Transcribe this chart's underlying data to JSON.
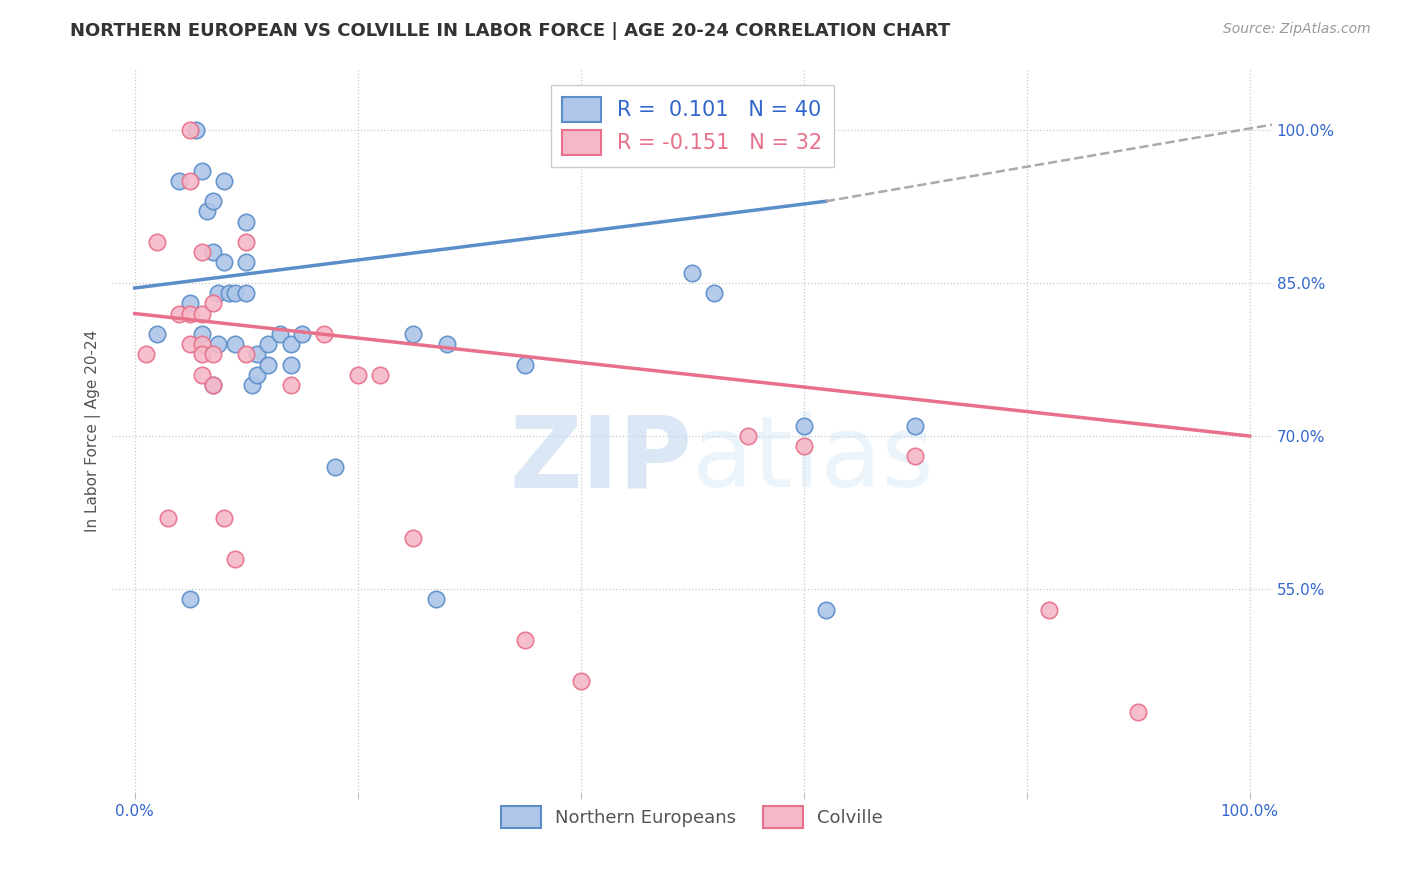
{
  "title": "NORTHERN EUROPEAN VS COLVILLE IN LABOR FORCE | AGE 20-24 CORRELATION CHART",
  "source": "Source: ZipAtlas.com",
  "ylabel": "In Labor Force | Age 20-24",
  "xlim": [
    -0.02,
    1.02
  ],
  "ylim": [
    0.35,
    1.06
  ],
  "ytick_labels_right": [
    "100.0%",
    "85.0%",
    "70.0%",
    "55.0%"
  ],
  "ytick_values_right": [
    1.0,
    0.85,
    0.7,
    0.55
  ],
  "grid_color": "#c8c8c8",
  "legend": {
    "R1": 0.101,
    "N1": 40,
    "R2": -0.151,
    "N2": 32
  },
  "blue_scatter_x": [
    0.02,
    0.04,
    0.05,
    0.055,
    0.06,
    0.065,
    0.07,
    0.07,
    0.075,
    0.075,
    0.08,
    0.08,
    0.085,
    0.09,
    0.09,
    0.1,
    0.1,
    0.1,
    0.105,
    0.11,
    0.11,
    0.12,
    0.12,
    0.13,
    0.14,
    0.14,
    0.15,
    0.18,
    0.25,
    0.27,
    0.28,
    0.35,
    0.5,
    0.52,
    0.6,
    0.62,
    0.7,
    0.05,
    0.06,
    0.07
  ],
  "blue_scatter_y": [
    0.8,
    0.95,
    0.83,
    1.0,
    0.96,
    0.92,
    0.93,
    0.88,
    0.84,
    0.79,
    0.95,
    0.87,
    0.84,
    0.84,
    0.79,
    0.91,
    0.87,
    0.84,
    0.75,
    0.78,
    0.76,
    0.77,
    0.79,
    0.8,
    0.79,
    0.77,
    0.8,
    0.67,
    0.8,
    0.54,
    0.79,
    0.77,
    0.86,
    0.84,
    0.71,
    0.53,
    0.71,
    0.54,
    0.8,
    0.75
  ],
  "pink_scatter_x": [
    0.01,
    0.02,
    0.03,
    0.04,
    0.05,
    0.05,
    0.05,
    0.05,
    0.06,
    0.06,
    0.06,
    0.06,
    0.06,
    0.07,
    0.07,
    0.07,
    0.08,
    0.09,
    0.1,
    0.1,
    0.14,
    0.17,
    0.2,
    0.22,
    0.25,
    0.35,
    0.4,
    0.55,
    0.6,
    0.7,
    0.82,
    0.9
  ],
  "pink_scatter_y": [
    0.78,
    0.89,
    0.62,
    0.82,
    1.0,
    0.95,
    0.82,
    0.79,
    0.88,
    0.82,
    0.79,
    0.78,
    0.76,
    0.83,
    0.78,
    0.75,
    0.62,
    0.58,
    0.89,
    0.78,
    0.75,
    0.8,
    0.76,
    0.76,
    0.6,
    0.5,
    0.46,
    0.7,
    0.69,
    0.68,
    0.53,
    0.43
  ],
  "blue_line_x": [
    0.0,
    0.62
  ],
  "blue_line_y_start": 0.845,
  "blue_line_y_end": 0.93,
  "pink_line_x": [
    0.0,
    1.0
  ],
  "pink_line_y_start": 0.82,
  "pink_line_y_end": 0.7,
  "dashed_line_x": [
    0.62,
    1.02
  ],
  "dashed_line_y_start": 0.93,
  "dashed_line_y_end": 1.005,
  "blue_color": "#5b8ec9",
  "blue_fill": "#aec6e8",
  "pink_color": "#e8708a",
  "pink_fill": "#f5b8c8",
  "background_color": "#ffffff",
  "axis_label_color": "#555555",
  "tick_color": "#3366cc",
  "title_color": "#333333"
}
